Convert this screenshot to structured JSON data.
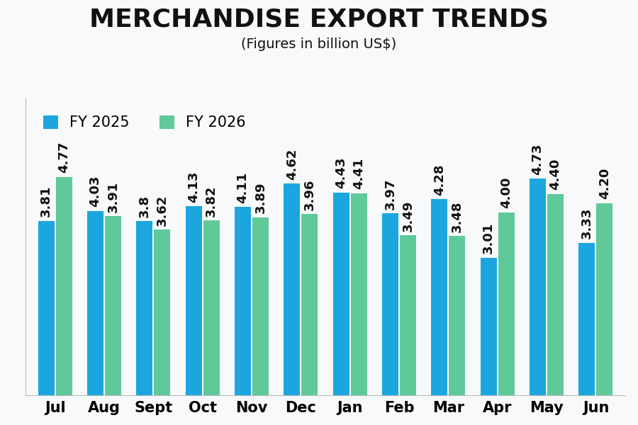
{
  "chart_data": {
    "type": "bar",
    "title": "MERCHANDISE EXPORT TRENDS",
    "subtitle": "(Figures in billion US$)",
    "categories": [
      "Jul",
      "Aug",
      "Sept",
      "Oct",
      "Nov",
      "Dec",
      "Jan",
      "Feb",
      "Mar",
      "Apr",
      "May",
      "Jun"
    ],
    "series": [
      {
        "name": "FY 2025",
        "color": "#1ba6e0",
        "values": [
          3.81,
          4.03,
          3.8,
          4.13,
          4.11,
          4.62,
          4.43,
          3.97,
          4.28,
          3.01,
          4.73,
          3.33
        ],
        "value_labels": [
          "3.81",
          "4.03",
          "3.8",
          "4.13",
          "4.11",
          "4.62",
          "4.43",
          "3.97",
          "4.28",
          "3.01",
          "4.73",
          "3.33"
        ]
      },
      {
        "name": "FY 2026",
        "color": "#5fc99a",
        "values": [
          4.77,
          3.91,
          3.62,
          3.82,
          3.89,
          3.96,
          4.41,
          3.49,
          3.48,
          4.0,
          4.4,
          4.2
        ],
        "value_labels": [
          "4.77",
          "3.91",
          "3.62",
          "3.82",
          "3.89",
          "3.96",
          "4.41",
          "3.49",
          "3.48",
          "4.00",
          "4.40",
          "4.20"
        ]
      }
    ],
    "ylim": [
      0,
      6.5
    ],
    "data_labels": true,
    "tick_labels": "x",
    "legend": "upper left",
    "grid": false
  }
}
